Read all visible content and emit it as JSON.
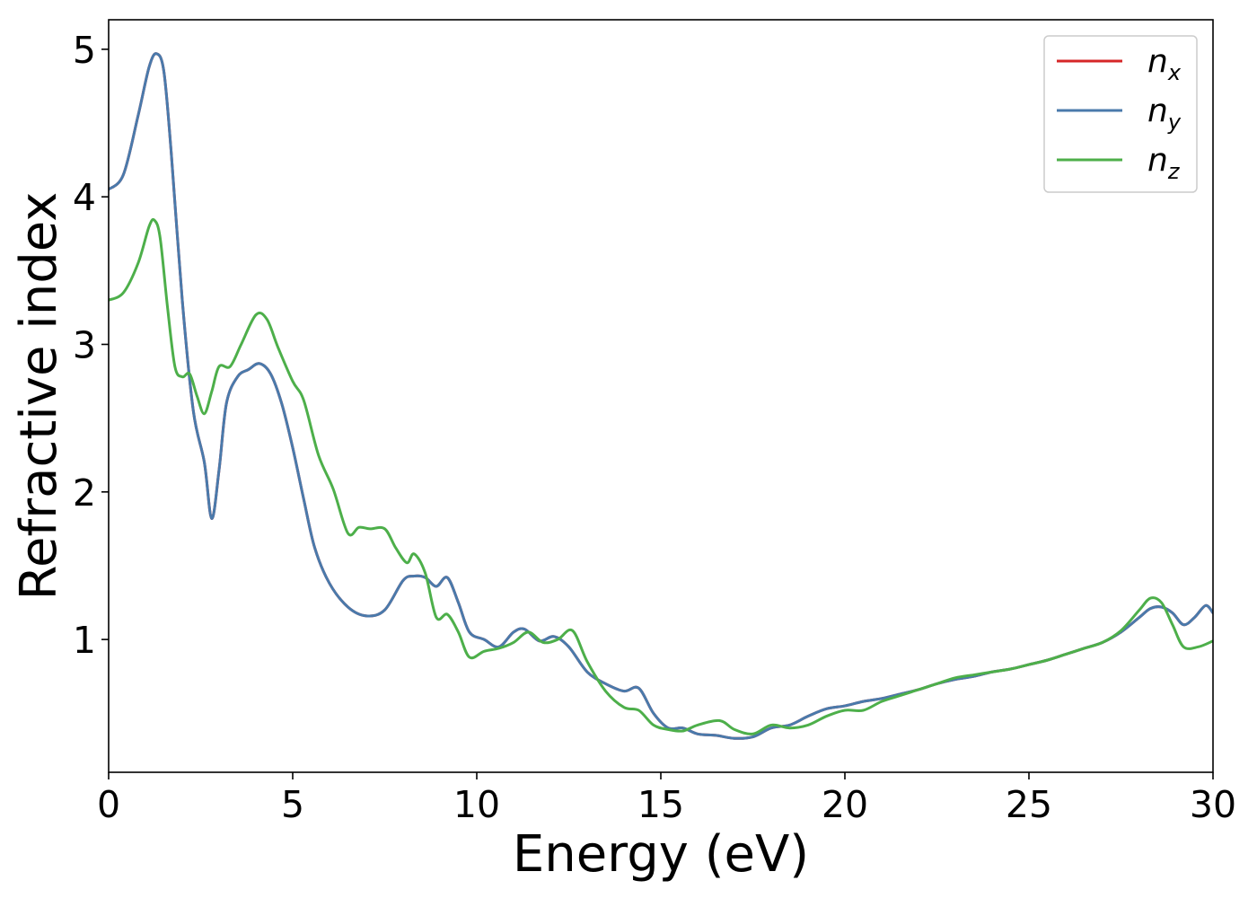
{
  "chart_data": {
    "type": "line",
    "xlabel": "Energy (eV)",
    "ylabel": "Refractive index",
    "xlim": [
      0,
      30
    ],
    "ylim": [
      0.1,
      5.2
    ],
    "x_ticks": [
      "0",
      "5",
      "10",
      "15",
      "20",
      "25",
      "30"
    ],
    "y_ticks": [
      "1",
      "2",
      "3",
      "4",
      "5"
    ],
    "grid": false,
    "legend_position": "top-right",
    "series": [
      {
        "name": "n_x",
        "legend_main": "n",
        "legend_sub": "x",
        "color": "#d62728",
        "x": [
          0,
          0.4,
          0.8,
          1.1,
          1.3,
          1.5,
          1.7,
          2.0,
          2.3,
          2.6,
          2.8,
          3.0,
          3.2,
          3.5,
          3.8,
          4.1,
          4.4,
          4.7,
          5.0,
          5.3,
          5.6,
          6.0,
          6.5,
          7.0,
          7.5,
          8.0,
          8.3,
          8.6,
          8.9,
          9.2,
          9.5,
          9.8,
          10.2,
          10.6,
          11.0,
          11.3,
          11.7,
          12.1,
          12.5,
          13.0,
          13.5,
          14.0,
          14.4,
          14.8,
          15.2,
          15.6,
          16.0,
          16.5,
          17.0,
          17.5,
          18.0,
          18.5,
          19.0,
          19.5,
          20.0,
          20.5,
          21.0,
          21.5,
          22.0,
          22.5,
          23.0,
          23.5,
          24.0,
          24.5,
          25.0,
          25.5,
          26.0,
          26.5,
          27.0,
          27.5,
          28.0,
          28.3,
          28.6,
          28.9,
          29.2,
          29.5,
          29.8,
          30.0
        ],
        "y": [
          4.05,
          4.15,
          4.55,
          4.88,
          4.97,
          4.85,
          4.3,
          3.3,
          2.55,
          2.2,
          1.82,
          2.15,
          2.6,
          2.78,
          2.83,
          2.87,
          2.8,
          2.6,
          2.3,
          1.95,
          1.62,
          1.38,
          1.22,
          1.16,
          1.2,
          1.4,
          1.43,
          1.42,
          1.36,
          1.42,
          1.25,
          1.05,
          1.0,
          0.95,
          1.05,
          1.07,
          0.99,
          1.02,
          0.95,
          0.78,
          0.7,
          0.65,
          0.67,
          0.5,
          0.4,
          0.4,
          0.36,
          0.35,
          0.33,
          0.34,
          0.4,
          0.42,
          0.48,
          0.53,
          0.55,
          0.58,
          0.6,
          0.63,
          0.66,
          0.7,
          0.73,
          0.75,
          0.78,
          0.8,
          0.83,
          0.86,
          0.9,
          0.94,
          0.98,
          1.05,
          1.15,
          1.21,
          1.22,
          1.18,
          1.1,
          1.15,
          1.23,
          1.18
        ]
      },
      {
        "name": "n_y",
        "legend_main": "n",
        "legend_sub": "y",
        "color": "#4a7aab",
        "x": [
          0,
          0.4,
          0.8,
          1.1,
          1.3,
          1.5,
          1.7,
          2.0,
          2.3,
          2.6,
          2.8,
          3.0,
          3.2,
          3.5,
          3.8,
          4.1,
          4.4,
          4.7,
          5.0,
          5.3,
          5.6,
          6.0,
          6.5,
          7.0,
          7.5,
          8.0,
          8.3,
          8.6,
          8.9,
          9.2,
          9.5,
          9.8,
          10.2,
          10.6,
          11.0,
          11.3,
          11.7,
          12.1,
          12.5,
          13.0,
          13.5,
          14.0,
          14.4,
          14.8,
          15.2,
          15.6,
          16.0,
          16.5,
          17.0,
          17.5,
          18.0,
          18.5,
          19.0,
          19.5,
          20.0,
          20.5,
          21.0,
          21.5,
          22.0,
          22.5,
          23.0,
          23.5,
          24.0,
          24.5,
          25.0,
          25.5,
          26.0,
          26.5,
          27.0,
          27.5,
          28.0,
          28.3,
          28.6,
          28.9,
          29.2,
          29.5,
          29.8,
          30.0
        ],
        "y": [
          4.05,
          4.15,
          4.55,
          4.88,
          4.97,
          4.85,
          4.3,
          3.3,
          2.55,
          2.2,
          1.82,
          2.15,
          2.6,
          2.78,
          2.83,
          2.87,
          2.8,
          2.6,
          2.3,
          1.95,
          1.62,
          1.38,
          1.22,
          1.16,
          1.2,
          1.4,
          1.43,
          1.42,
          1.36,
          1.42,
          1.25,
          1.05,
          1.0,
          0.95,
          1.05,
          1.07,
          0.99,
          1.02,
          0.95,
          0.78,
          0.7,
          0.65,
          0.67,
          0.5,
          0.4,
          0.4,
          0.36,
          0.35,
          0.33,
          0.34,
          0.4,
          0.42,
          0.48,
          0.53,
          0.55,
          0.58,
          0.6,
          0.63,
          0.66,
          0.7,
          0.73,
          0.75,
          0.78,
          0.8,
          0.83,
          0.86,
          0.9,
          0.94,
          0.98,
          1.05,
          1.15,
          1.21,
          1.22,
          1.18,
          1.1,
          1.15,
          1.23,
          1.18
        ]
      },
      {
        "name": "n_z",
        "legend_main": "n",
        "legend_sub": "z",
        "color": "#4daf4a",
        "x": [
          0,
          0.4,
          0.8,
          1.1,
          1.25,
          1.4,
          1.6,
          1.8,
          2.0,
          2.2,
          2.4,
          2.6,
          2.8,
          3.0,
          3.3,
          3.6,
          4.0,
          4.3,
          4.6,
          5.0,
          5.3,
          5.7,
          6.1,
          6.5,
          6.8,
          7.1,
          7.5,
          7.8,
          8.1,
          8.3,
          8.6,
          8.9,
          9.2,
          9.5,
          9.8,
          10.2,
          10.6,
          11.0,
          11.4,
          11.8,
          12.2,
          12.6,
          13.0,
          13.5,
          14.0,
          14.4,
          14.8,
          15.2,
          15.6,
          16.0,
          16.6,
          17.0,
          17.5,
          18.0,
          18.5,
          19.0,
          19.5,
          20.0,
          20.5,
          21.0,
          21.5,
          22.0,
          22.5,
          23.0,
          23.5,
          24.0,
          24.5,
          25.0,
          25.5,
          26.0,
          26.5,
          27.0,
          27.5,
          28.0,
          28.3,
          28.6,
          28.9,
          29.2,
          29.6,
          30.0
        ],
        "y": [
          3.3,
          3.35,
          3.55,
          3.8,
          3.84,
          3.72,
          3.25,
          2.85,
          2.78,
          2.8,
          2.65,
          2.53,
          2.68,
          2.85,
          2.85,
          3.0,
          3.2,
          3.17,
          2.98,
          2.75,
          2.62,
          2.25,
          2.02,
          1.72,
          1.76,
          1.75,
          1.75,
          1.62,
          1.52,
          1.58,
          1.45,
          1.15,
          1.17,
          1.05,
          0.88,
          0.92,
          0.94,
          0.98,
          1.05,
          0.98,
          1.0,
          1.06,
          0.85,
          0.65,
          0.54,
          0.52,
          0.42,
          0.39,
          0.38,
          0.42,
          0.45,
          0.39,
          0.36,
          0.42,
          0.4,
          0.42,
          0.48,
          0.52,
          0.52,
          0.58,
          0.62,
          0.66,
          0.7,
          0.74,
          0.76,
          0.78,
          0.8,
          0.83,
          0.86,
          0.9,
          0.94,
          0.98,
          1.06,
          1.2,
          1.28,
          1.25,
          1.1,
          0.95,
          0.95,
          0.99
        ]
      }
    ]
  }
}
